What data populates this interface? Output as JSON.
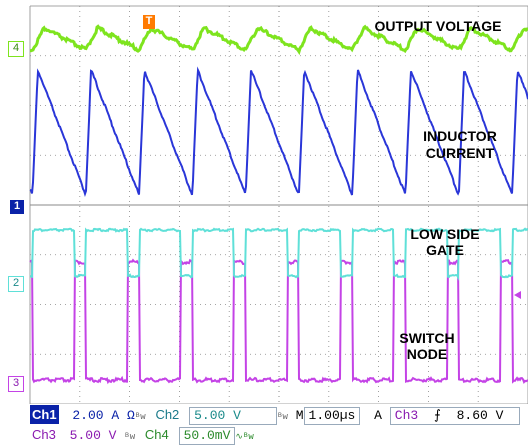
{
  "annotations": {
    "output_voltage": "OUTPUT VOLTAGE",
    "inductor_current_1": "INDUCTOR",
    "inductor_current_2": "CURRENT",
    "low_side_gate_1": "LOW SIDE",
    "low_side_gate_2": "GATE",
    "switch_node_1": "SWITCH",
    "switch_node_2": "NODE"
  },
  "markers": {
    "trigger": "T",
    "ch4": "4",
    "ch1": "1",
    "ch2": "2",
    "ch3": "3"
  },
  "status_bar": {
    "ch1_label": "Ch1",
    "ch1_scale": "2.00 A",
    "ch1_unit_icon": "Ω",
    "ch2_label": "Ch2",
    "ch2_scale": "5.00 V",
    "timebase_prefix": "M",
    "timebase": "1.00µs",
    "trigger_mode": "A",
    "trigger_source": "Ch3",
    "trigger_slope": "rising-edge-icon",
    "trigger_level": "8.60 V",
    "ch3_label": "Ch3",
    "ch3_scale": "5.00 V",
    "ch4_label": "Ch4",
    "ch4_scale": "50.0mV"
  },
  "colors": {
    "ch1": "#2a36d8",
    "ch2": "#5fe0d8",
    "ch3": "#c443e6",
    "ch4": "#7ee41e",
    "grid": "#888888",
    "marker_bg": "#ffffff"
  },
  "waveform": {
    "period_us": 1.07,
    "phase_us": 0.05,
    "high_fraction": 0.78,
    "screen_us": 10
  }
}
